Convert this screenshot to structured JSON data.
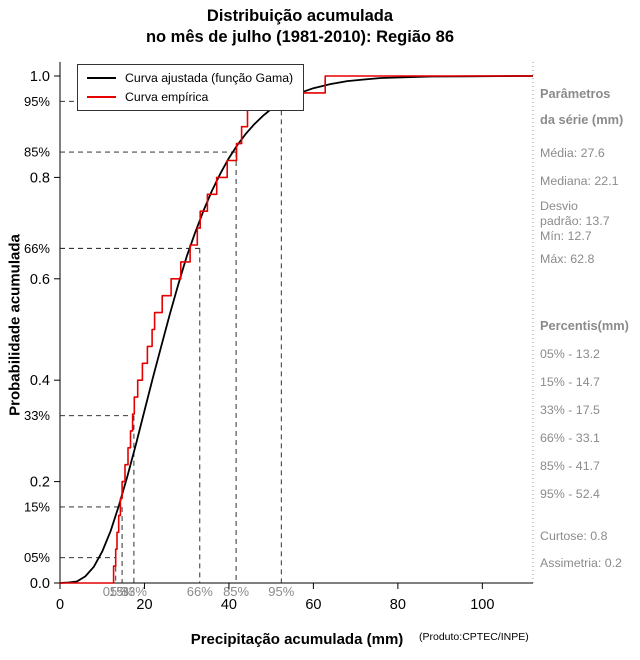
{
  "title": {
    "line1": "Distribuição acumulada",
    "line2": "no mês de julho (1981-2010): Região 86"
  },
  "axes": {
    "x_label": "Precipitação acumulada (mm)",
    "y_label": "Probabilidade acumulada"
  },
  "footer": "(Produto:CPTEC/INPE)",
  "legend": {
    "items": [
      {
        "label": "Curva ajustada (função Gama)",
        "color": "#000000"
      },
      {
        "label": "Curva empírica",
        "color": "#e60000"
      }
    ]
  },
  "sidebar": {
    "params_header": [
      "Parâmetros",
      "da série (mm)"
    ],
    "stats": [
      "Média: 27.6",
      "Mediana: 22.1",
      "Desvio",
      "padrão: 13.7",
      "Mín: 12.7",
      "Máx: 62.8"
    ],
    "percentis_header": "Percentis(mm)",
    "percentiles": [
      "05% - 13.2",
      "15% - 14.7",
      "33% - 17.5",
      "66% - 33.1",
      "85% - 41.7",
      "95% - 52.4"
    ],
    "curtose": "Curtose: 0.8",
    "assimetria": "Assimetria: 0.2"
  },
  "chart_data": {
    "type": "line",
    "title": "Distribuição acumulada no mês de julho (1981-2010): Região 86",
    "xlabel": "Precipitação acumulada (mm)",
    "ylabel": "Probabilidade acumulada",
    "xlim": [
      0,
      112
    ],
    "ylim": [
      0,
      1
    ],
    "grid": false,
    "legend_position": "top-left",
    "x_ticks": [
      0,
      20,
      40,
      60,
      80,
      100
    ],
    "x_tick_labels": [
      "0",
      "20",
      "40",
      "60",
      "80",
      "100"
    ],
    "y_ticks": [
      0,
      0.2,
      0.4,
      0.6,
      0.8,
      1
    ],
    "y_tick_labels": [
      "0.0",
      "0.2",
      "0.4",
      "0.6",
      "0.8",
      "1.0"
    ],
    "percentiles": [
      {
        "label": "05%",
        "p": 0.05,
        "value": 13.2
      },
      {
        "label": "15%",
        "p": 0.15,
        "value": 14.7
      },
      {
        "label": "33%",
        "p": 0.33,
        "value": 17.5
      },
      {
        "label": "66%",
        "p": 0.66,
        "value": 33.1
      },
      {
        "label": "85%",
        "p": 0.85,
        "value": 41.7
      },
      {
        "label": "95%",
        "p": 0.95,
        "value": 52.4
      }
    ],
    "stats": {
      "media": 27.6,
      "mediana": 22.1,
      "desvio_padrao": 13.7,
      "min": 12.7,
      "max": 62.8,
      "curtose": 0.8,
      "assimetria": 0.2
    },
    "series": [
      {
        "name": "Curva ajustada (função Gama)",
        "type": "smooth",
        "color": "#000000",
        "points": [
          [
            0,
            0
          ],
          [
            2,
            0.001
          ],
          [
            4,
            0.003
          ],
          [
            6,
            0.013
          ],
          [
            8,
            0.032
          ],
          [
            10,
            0.062
          ],
          [
            12,
            0.103
          ],
          [
            14,
            0.154
          ],
          [
            16,
            0.212
          ],
          [
            18,
            0.274
          ],
          [
            20,
            0.34
          ],
          [
            22,
            0.405
          ],
          [
            24,
            0.468
          ],
          [
            26,
            0.53
          ],
          [
            28,
            0.589
          ],
          [
            30,
            0.644
          ],
          [
            32,
            0.691
          ],
          [
            34,
            0.735
          ],
          [
            36,
            0.774
          ],
          [
            38,
            0.808
          ],
          [
            40,
            0.838
          ],
          [
            42,
            0.864
          ],
          [
            44,
            0.886
          ],
          [
            46,
            0.905
          ],
          [
            48,
            0.921
          ],
          [
            50,
            0.935
          ],
          [
            52,
            0.946
          ],
          [
            54,
            0.956
          ],
          [
            56,
            0.964
          ],
          [
            58,
            0.97
          ],
          [
            60,
            0.976
          ],
          [
            64,
            0.984
          ],
          [
            68,
            0.99
          ],
          [
            72,
            0.993
          ],
          [
            76,
            0.996
          ],
          [
            80,
            0.997
          ],
          [
            88,
            0.999
          ],
          [
            96,
            0.9995
          ],
          [
            104,
            0.9998
          ],
          [
            112,
            1
          ]
        ]
      },
      {
        "name": "Curva empírica",
        "type": "step",
        "color": "#e60000",
        "values": [
          12.7,
          13.2,
          13.5,
          13.9,
          14.3,
          14.7,
          15.4,
          16.1,
          16.7,
          17.2,
          17.6,
          18.4,
          19.5,
          20.7,
          21.8,
          22.4,
          24.2,
          26.3,
          28.6,
          30.8,
          32.5,
          33.2,
          34.9,
          37.1,
          39.6,
          41.8,
          43,
          44.4,
          52.4,
          62.8
        ]
      }
    ]
  }
}
